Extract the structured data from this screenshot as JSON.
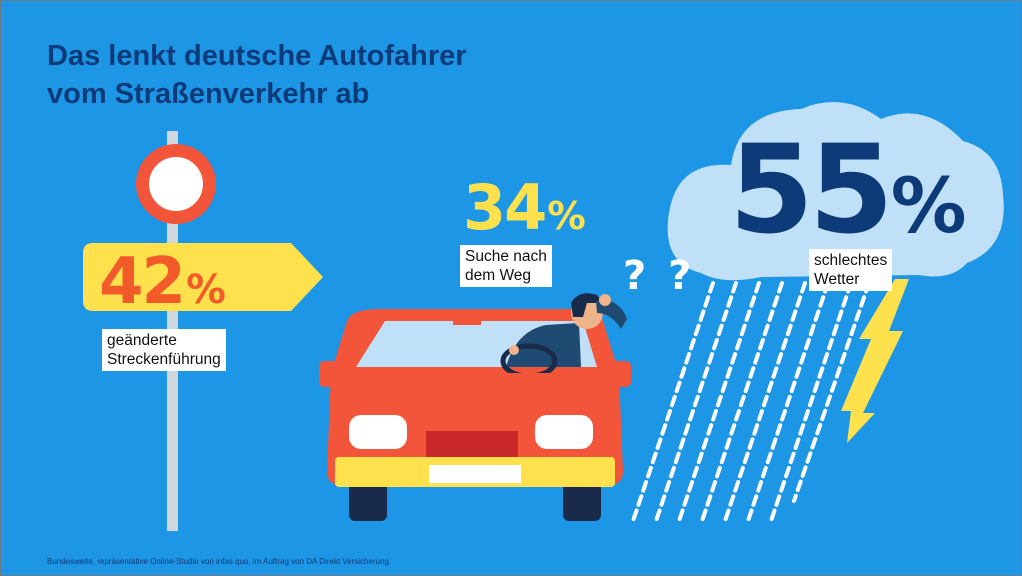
{
  "title_line1": "Das lenkt deutsche Autofahrer",
  "title_line2": "vom Straßenverkehr ab",
  "footnote": "Bundesweite, repräsentative Online-Studie von infas quo, im Auftrag von DA Direkt Versicherung.",
  "chart_data": {
    "type": "bar",
    "categories": [
      "geänderte Streckenführung",
      "Suche nach dem Weg",
      "schlechtes Wetter"
    ],
    "values": [
      42,
      34,
      55
    ],
    "unit": "%",
    "title": "Das lenkt deutsche Autofahrer vom Straßenverkehr ab"
  },
  "stats": [
    {
      "number": "42",
      "unit": "%",
      "label_line1": "geänderte",
      "label_line2": "Streckenführung",
      "color": "#f25a2a"
    },
    {
      "number": "34",
      "unit": "%",
      "label_line1": "Suche nach",
      "label_line2": "dem Weg",
      "color": "#ffe14d"
    },
    {
      "number": "55",
      "unit": "%",
      "label_line1": "schlechtes",
      "label_line2": "Wetter",
      "color": "#0d3a78"
    }
  ],
  "question_marks": "? ?",
  "colors": {
    "background": "#1e96e6",
    "title": "#0d3a78",
    "car": "#f2553a",
    "sign": "#ffe14d",
    "cloud": "#bfe0f7",
    "lightning": "#ffe14d"
  }
}
